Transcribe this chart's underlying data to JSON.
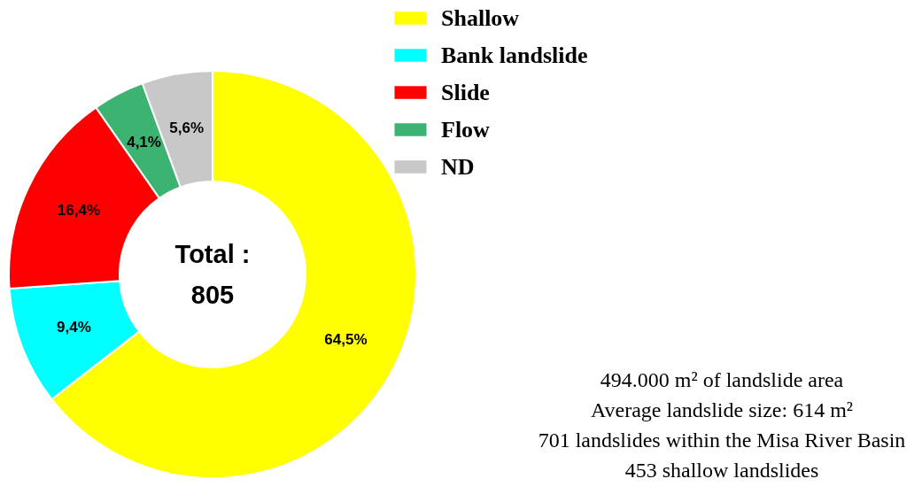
{
  "chart_data": {
    "type": "donut",
    "categories": [
      "Shallow",
      "Bank landslide",
      "Slide",
      "Flow",
      "ND"
    ],
    "values": [
      64.5,
      9.4,
      16.4,
      4.1,
      5.6
    ],
    "value_labels": [
      "64,5%",
      "9,4%",
      "16,4%",
      "4,1%",
      "5,6%"
    ],
    "colors": [
      "#ffff00",
      "#00ffff",
      "#ff0000",
      "#3cb371",
      "#c8c8c8"
    ],
    "legend": "top right",
    "annotations": [
      "Total  :",
      "805",
      "494.000 m² of landslide area",
      "Average landslide size: 614 m²",
      "701 landslides within the Misa River Basin",
      "453 shallow landslides"
    ]
  }
}
